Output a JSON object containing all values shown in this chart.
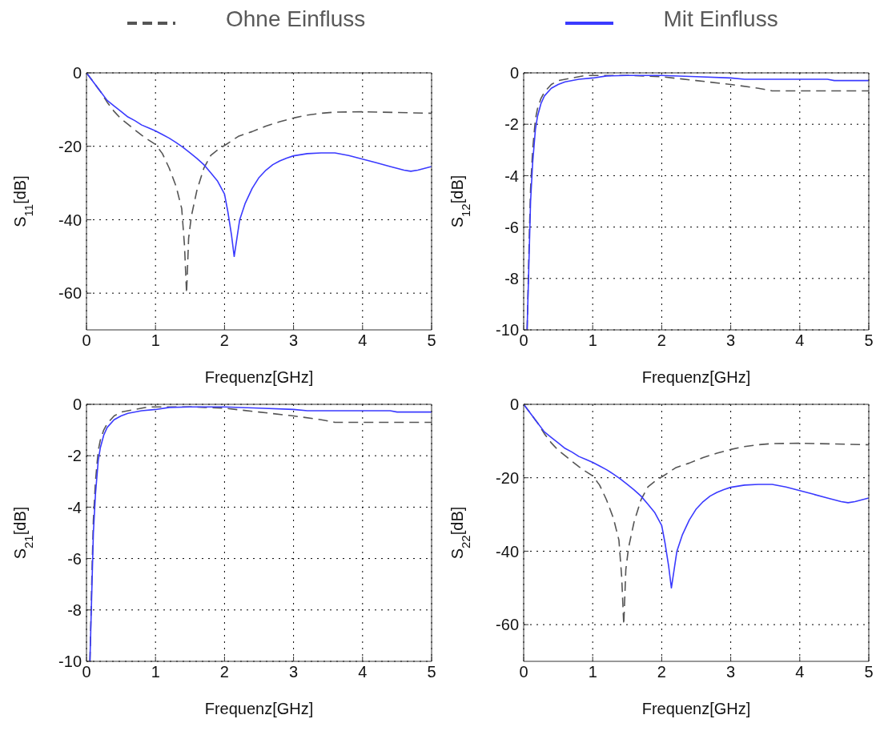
{
  "chart_data": [
    {
      "type": "line",
      "legend": "top",
      "xlabel": "Frequenz[GHz]",
      "ylabel": "S$_{11}$[dB]",
      "xlim": [
        0,
        5
      ],
      "xticks": [
        0,
        1,
        2,
        3,
        4,
        5
      ],
      "ylim": [
        -70,
        0
      ],
      "yticks": [
        -60,
        -40,
        -20,
        0
      ],
      "grid": true,
      "series": [
        {
          "name": "Ohne Einfluss",
          "color": "#555555",
          "line_style": "dashed",
          "x": [
            0,
            0.2,
            0.3,
            0.4,
            0.5,
            0.6,
            0.7,
            0.8,
            0.9,
            1.0,
            1.1,
            1.2,
            1.3,
            1.38,
            1.42,
            1.45,
            1.48,
            1.52,
            1.6,
            1.7,
            1.8,
            1.9,
            2.0,
            2.2,
            2.4,
            2.6,
            2.8,
            3.0,
            3.2,
            3.4,
            3.6,
            4.0,
            4.5,
            5.0
          ],
          "values": [
            0,
            -5,
            -8,
            -10.5,
            -12.5,
            -14,
            -15.5,
            -17,
            -18.3,
            -19.5,
            -22,
            -26,
            -31,
            -37,
            -47,
            -60,
            -45,
            -39,
            -32,
            -26,
            -22.5,
            -21,
            -19.8,
            -17.3,
            -16,
            -14.5,
            -13.3,
            -12.3,
            -11.5,
            -11,
            -10.7,
            -10.6,
            -10.8,
            -11
          ]
        },
        {
          "name": "Mit Einfluss",
          "color": "#3a3aff",
          "line_style": "solid",
          "x": [
            0,
            0.1,
            0.2,
            0.3,
            0.4,
            0.5,
            0.6,
            0.7,
            0.8,
            0.9,
            1.0,
            1.1,
            1.2,
            1.3,
            1.4,
            1.5,
            1.6,
            1.7,
            1.8,
            1.9,
            2.0,
            2.05,
            2.1,
            2.14,
            2.18,
            2.22,
            2.3,
            2.4,
            2.5,
            2.6,
            2.7,
            2.8,
            2.9,
            3.0,
            3.2,
            3.4,
            3.6,
            3.8,
            4.0,
            4.2,
            4.4,
            4.6,
            4.7,
            4.8,
            4.9,
            5.0
          ],
          "values": [
            0,
            -2.5,
            -5,
            -7.5,
            -9,
            -10.5,
            -12,
            -13,
            -14.2,
            -15,
            -15.8,
            -16.8,
            -17.8,
            -19,
            -20.3,
            -21.8,
            -23.3,
            -25,
            -27.2,
            -29.5,
            -33,
            -38,
            -44,
            -50,
            -45,
            -40,
            -35.5,
            -31.5,
            -28.5,
            -26.5,
            -25,
            -24,
            -23.2,
            -22.6,
            -22,
            -21.8,
            -21.8,
            -22.5,
            -23.5,
            -24.5,
            -25.5,
            -26.5,
            -26.8,
            -26.5,
            -26,
            -25.5
          ]
        }
      ]
    },
    {
      "type": "line",
      "xlabel": "Frequenz[GHz]",
      "ylabel": "S$_{12}$[dB]",
      "xlim": [
        0,
        5
      ],
      "xticks": [
        0,
        1,
        2,
        3,
        4,
        5
      ],
      "ylim": [
        -10,
        0
      ],
      "yticks": [
        -10,
        -8,
        -6,
        -4,
        -2,
        0
      ],
      "grid": true,
      "series": [
        {
          "color": "#555555",
          "line_style": "dashed",
          "x": [
            0.05,
            0.08,
            0.1,
            0.13,
            0.17,
            0.2,
            0.25,
            0.3,
            0.4,
            0.5,
            0.7,
            0.9,
            1.5,
            2.0,
            2.5,
            3.0,
            3.4,
            3.6,
            5.0
          ],
          "values": [
            -10,
            -6.5,
            -4.5,
            -3,
            -1.8,
            -1.4,
            -1,
            -0.75,
            -0.45,
            -0.3,
            -0.2,
            -0.1,
            -0.1,
            -0.15,
            -0.3,
            -0.45,
            -0.6,
            -0.7,
            -0.7
          ]
        },
        {
          "color": "#3a3aff",
          "line_style": "solid",
          "x": [
            0.05,
            0.08,
            0.1,
            0.13,
            0.17,
            0.2,
            0.25,
            0.3,
            0.4,
            0.5,
            0.6,
            0.8,
            1.0,
            1.2,
            1.5,
            2.0,
            2.5,
            3.0,
            3.2,
            4.4,
            4.5,
            5.0
          ],
          "values": [
            -10,
            -7,
            -5,
            -3.5,
            -2.2,
            -1.7,
            -1.2,
            -0.9,
            -0.6,
            -0.45,
            -0.35,
            -0.25,
            -0.2,
            -0.12,
            -0.1,
            -0.1,
            -0.15,
            -0.2,
            -0.25,
            -0.25,
            -0.3,
            -0.3
          ]
        }
      ]
    },
    {
      "type": "line",
      "xlabel": "Frequenz[GHz]",
      "ylabel": "S$_{21}$[dB]",
      "xlim": [
        0,
        5
      ],
      "xticks": [
        0,
        1,
        2,
        3,
        4,
        5
      ],
      "ylim": [
        -10,
        0
      ],
      "yticks": [
        -10,
        -8,
        -6,
        -4,
        -2,
        0
      ],
      "grid": true,
      "series": [
        {
          "color": "#555555",
          "line_style": "dashed",
          "x": [
            0.05,
            0.08,
            0.1,
            0.13,
            0.17,
            0.2,
            0.25,
            0.3,
            0.4,
            0.5,
            0.7,
            0.9,
            1.5,
            2.0,
            2.5,
            3.0,
            3.4,
            3.6,
            5.0
          ],
          "values": [
            -10,
            -6.5,
            -4.5,
            -3,
            -1.8,
            -1.4,
            -1,
            -0.75,
            -0.45,
            -0.3,
            -0.2,
            -0.1,
            -0.1,
            -0.15,
            -0.3,
            -0.45,
            -0.6,
            -0.7,
            -0.7
          ]
        },
        {
          "color": "#3a3aff",
          "line_style": "solid",
          "x": [
            0.05,
            0.08,
            0.1,
            0.13,
            0.17,
            0.2,
            0.25,
            0.3,
            0.4,
            0.5,
            0.6,
            0.8,
            1.0,
            1.2,
            1.5,
            2.0,
            2.5,
            3.0,
            3.2,
            4.4,
            4.5,
            5.0
          ],
          "values": [
            -10,
            -7,
            -5,
            -3.5,
            -2.2,
            -1.7,
            -1.2,
            -0.9,
            -0.6,
            -0.45,
            -0.35,
            -0.25,
            -0.2,
            -0.12,
            -0.1,
            -0.1,
            -0.15,
            -0.2,
            -0.25,
            -0.25,
            -0.3,
            -0.3
          ]
        }
      ]
    },
    {
      "type": "line",
      "xlabel": "Frequenz[GHz]",
      "ylabel": "S$_{22}$[dB]",
      "xlim": [
        0,
        5
      ],
      "xticks": [
        0,
        1,
        2,
        3,
        4,
        5
      ],
      "ylim": [
        -70,
        0
      ],
      "yticks": [
        -60,
        -40,
        -20,
        0
      ],
      "grid": true,
      "series": [
        {
          "color": "#555555",
          "line_style": "dashed",
          "x": [
            0,
            0.2,
            0.3,
            0.4,
            0.5,
            0.6,
            0.7,
            0.8,
            0.9,
            1.0,
            1.1,
            1.2,
            1.3,
            1.38,
            1.42,
            1.45,
            1.48,
            1.52,
            1.6,
            1.7,
            1.8,
            1.9,
            2.0,
            2.2,
            2.4,
            2.6,
            2.8,
            3.0,
            3.2,
            3.4,
            3.6,
            4.0,
            4.5,
            5.0
          ],
          "values": [
            0,
            -5,
            -8,
            -10.5,
            -12.5,
            -14,
            -15.5,
            -17,
            -18.3,
            -19.5,
            -22,
            -26,
            -31,
            -37,
            -47,
            -60,
            -45,
            -39,
            -32,
            -26,
            -22.5,
            -21,
            -19.8,
            -17.3,
            -16,
            -14.5,
            -13.3,
            -12.3,
            -11.5,
            -11,
            -10.7,
            -10.6,
            -10.8,
            -11
          ]
        },
        {
          "color": "#3a3aff",
          "line_style": "solid",
          "x": [
            0,
            0.1,
            0.2,
            0.3,
            0.4,
            0.5,
            0.6,
            0.7,
            0.8,
            0.9,
            1.0,
            1.1,
            1.2,
            1.3,
            1.4,
            1.5,
            1.6,
            1.7,
            1.8,
            1.9,
            2.0,
            2.05,
            2.1,
            2.14,
            2.18,
            2.22,
            2.3,
            2.4,
            2.5,
            2.6,
            2.7,
            2.8,
            2.9,
            3.0,
            3.2,
            3.4,
            3.6,
            3.8,
            4.0,
            4.2,
            4.4,
            4.6,
            4.7,
            4.8,
            4.9,
            5.0
          ],
          "values": [
            0,
            -2.5,
            -5,
            -7.5,
            -9,
            -10.5,
            -12,
            -13,
            -14.2,
            -15,
            -15.8,
            -16.8,
            -17.8,
            -19,
            -20.3,
            -21.8,
            -23.3,
            -25,
            -27.2,
            -29.5,
            -33,
            -38,
            -44,
            -50,
            -45,
            -40,
            -35.5,
            -31.5,
            -28.5,
            -26.5,
            -25,
            -24,
            -23.2,
            -22.6,
            -22,
            -21.8,
            -21.8,
            -22.5,
            -23.5,
            -24.5,
            -25.5,
            -26.5,
            -26.8,
            -26.5,
            -26,
            -25.5
          ]
        }
      ]
    }
  ]
}
